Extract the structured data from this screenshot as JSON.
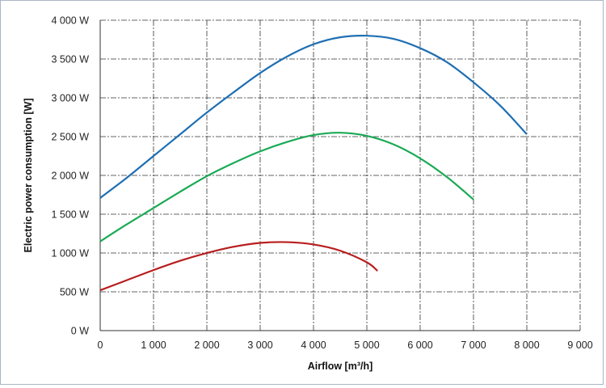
{
  "chart_data": {
    "type": "line",
    "title": "",
    "xlabel": "Airflow [m³/h]",
    "ylabel": "Electric power consumption [W]",
    "xlim": [
      0,
      9000
    ],
    "ylim": [
      0,
      4000
    ],
    "x_ticks": [
      "0",
      "1 000",
      "2 000",
      "3 000",
      "4 000",
      "5 000",
      "6 000",
      "7 000",
      "8 000",
      "9 000"
    ],
    "y_ticks": [
      "0 W",
      "500 W",
      "1 000 W",
      "1 500 W",
      "2 000 W",
      "2 500 W",
      "3 000 W",
      "3 500 W",
      "4 000 W"
    ],
    "grid": true,
    "series": [
      {
        "color": "#1f6fb2",
        "x": [
          0,
          500,
          1000,
          1500,
          2000,
          2500,
          3000,
          3500,
          4000,
          4500,
          5000,
          5500,
          6000,
          6500,
          7000,
          7500,
          8000
        ],
        "values": [
          1710,
          1970,
          2250,
          2530,
          2810,
          3070,
          3320,
          3530,
          3690,
          3780,
          3800,
          3760,
          3640,
          3460,
          3200,
          2900,
          2530
        ]
      },
      {
        "color": "#1aaa55",
        "x": [
          0,
          500,
          1000,
          1500,
          2000,
          2500,
          3000,
          3500,
          4000,
          4500,
          5000,
          5500,
          6000,
          6500,
          7000
        ],
        "values": [
          1150,
          1370,
          1580,
          1790,
          1990,
          2160,
          2310,
          2430,
          2520,
          2550,
          2510,
          2400,
          2220,
          1980,
          1690
        ]
      },
      {
        "color": "#b81d1d",
        "x": [
          0,
          500,
          1000,
          1500,
          2000,
          2500,
          3000,
          3500,
          4000,
          4500,
          5000,
          5200
        ],
        "values": [
          520,
          650,
          780,
          900,
          1000,
          1080,
          1130,
          1140,
          1110,
          1030,
          880,
          770
        ]
      }
    ]
  }
}
